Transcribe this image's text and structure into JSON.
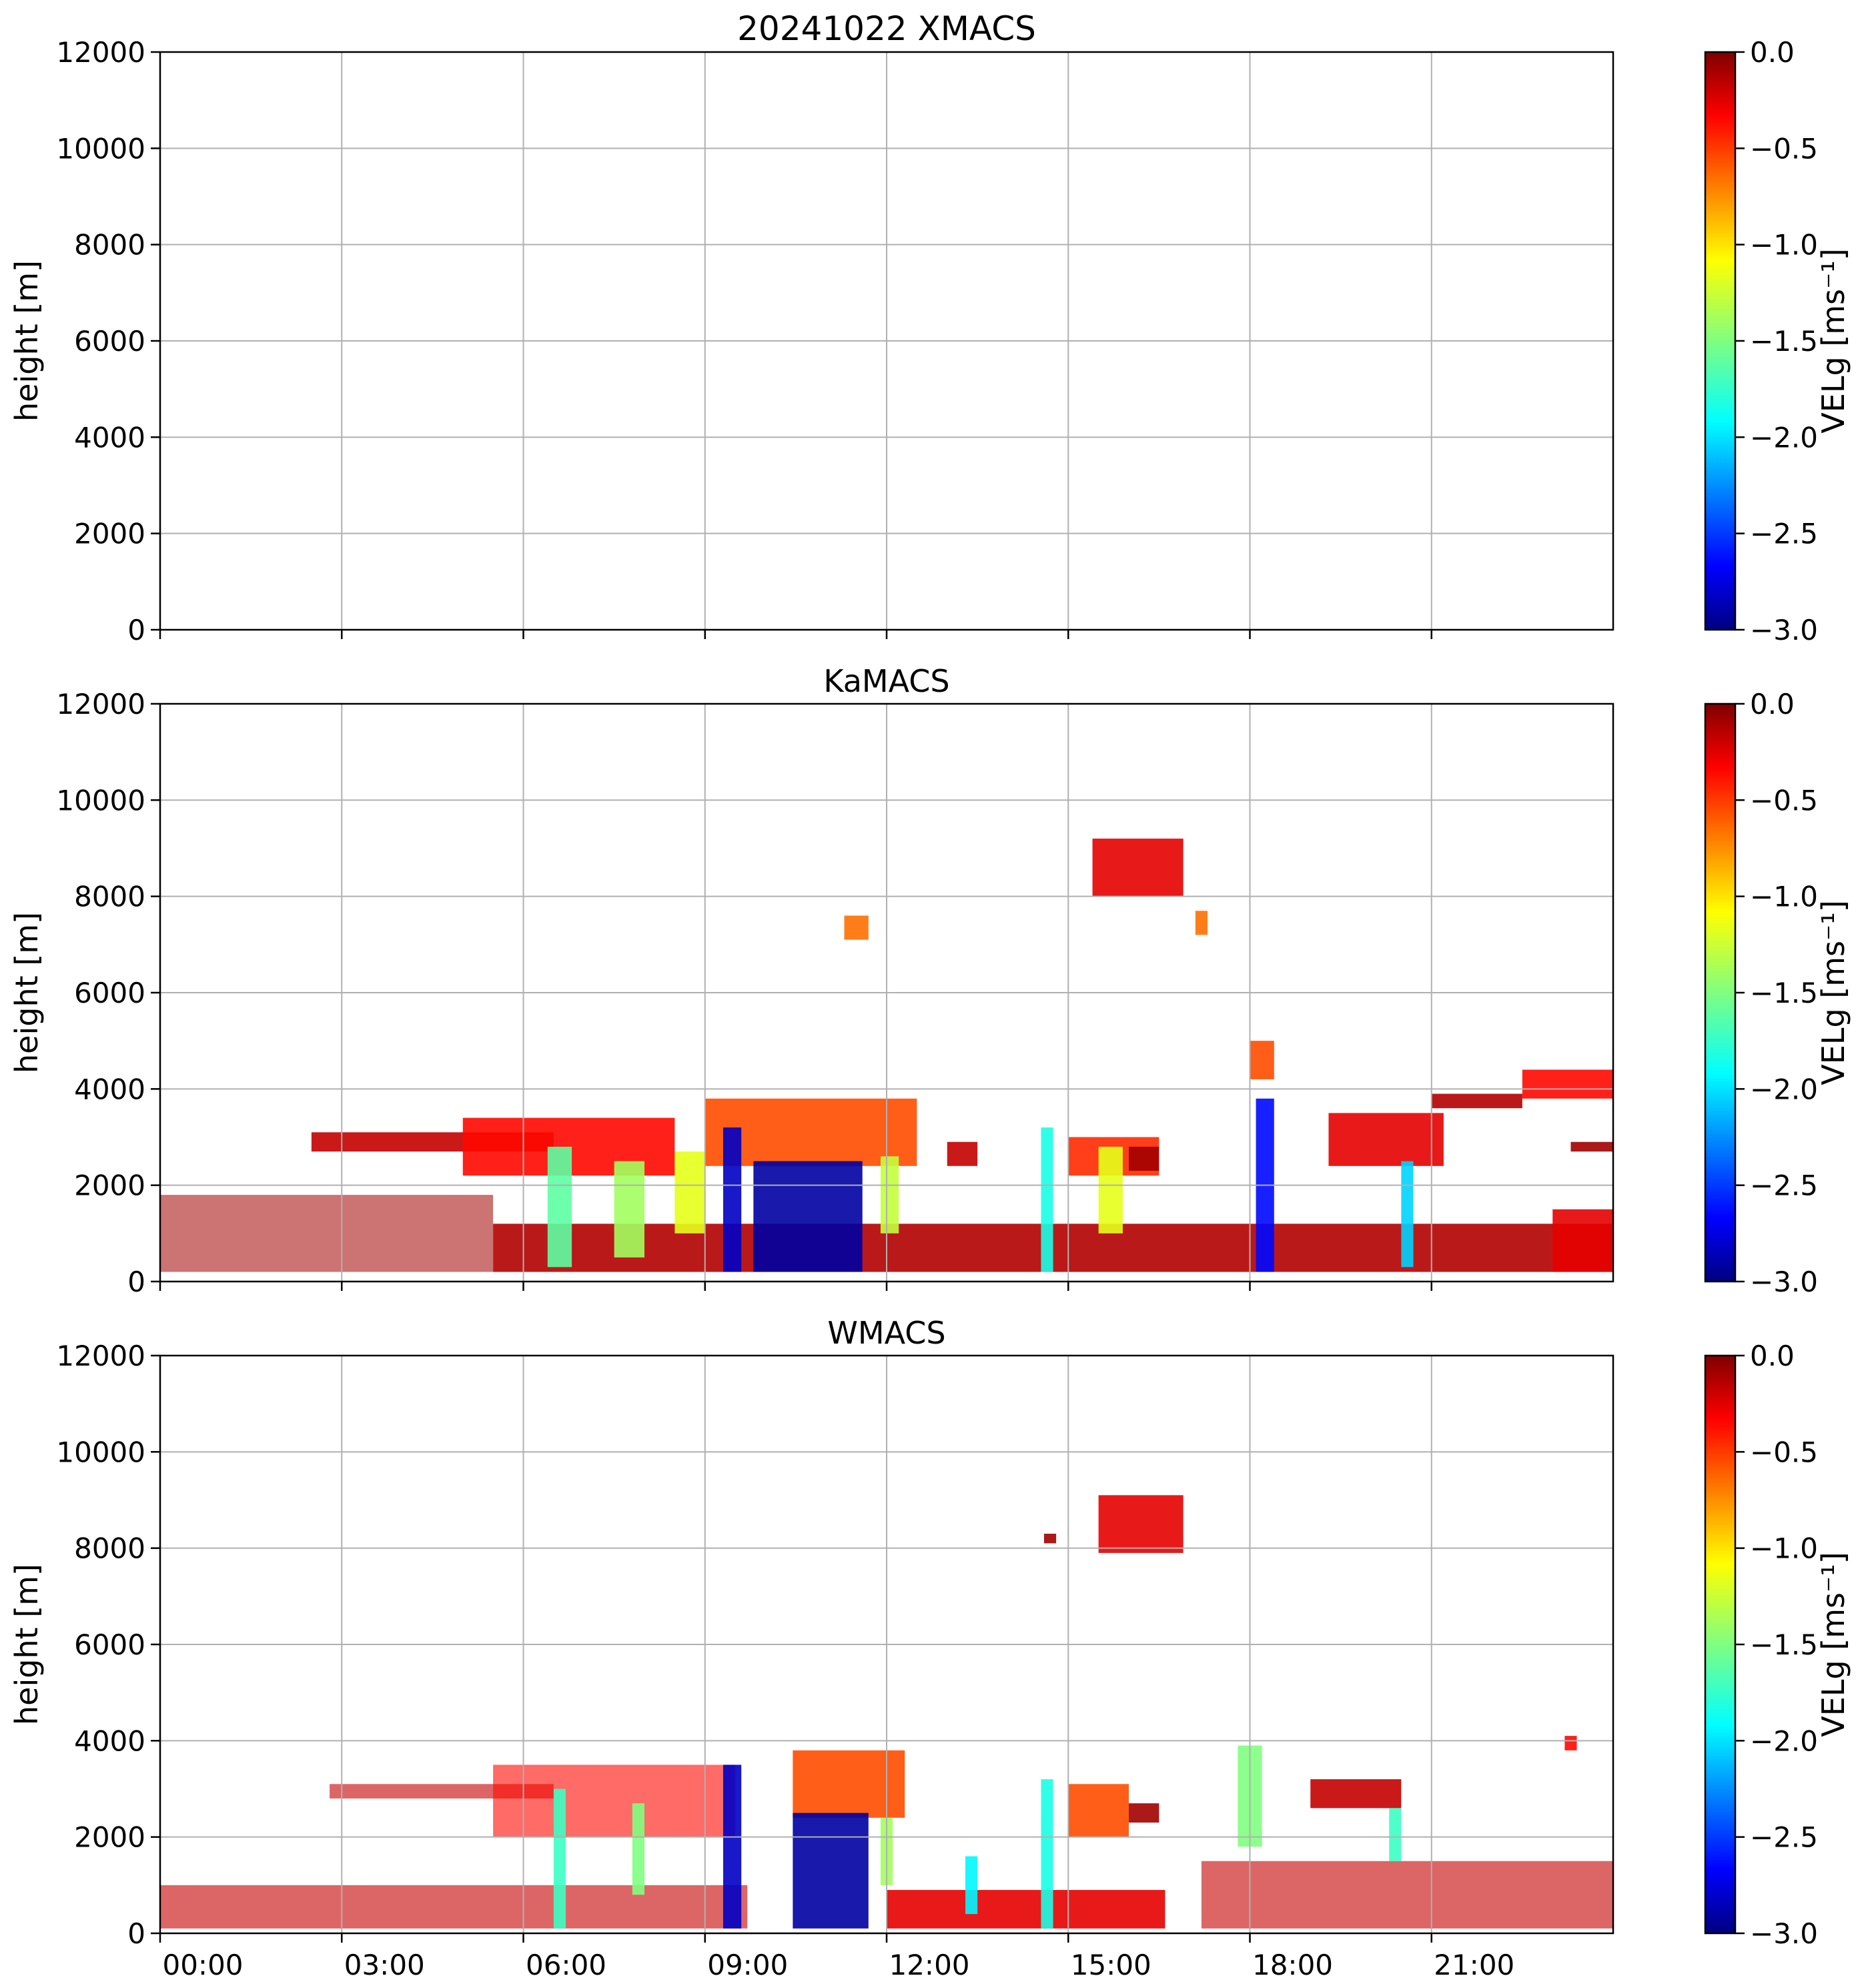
{
  "figure": {
    "colormap": "jet",
    "colors": {
      "axis": "#000000",
      "grid": "#b0b0b0",
      "background": "#ffffff",
      "dark_red": "#800000",
      "dark_blue": "#000080"
    }
  },
  "chart_data": [
    {
      "type": "heatmap",
      "title": "20241022 XMACS",
      "ylabel": "height [m]",
      "xlabel": "",
      "xlim": [
        "00:00",
        "24:00"
      ],
      "ylim": [
        0,
        12000
      ],
      "x_ticks": [
        "00:00",
        "03:00",
        "06:00",
        "09:00",
        "12:00",
        "15:00",
        "18:00",
        "21:00"
      ],
      "x_ticklabels_visible": false,
      "y_ticks": [
        0,
        2000,
        4000,
        6000,
        8000,
        10000,
        12000
      ],
      "grid": true,
      "colorbar": {
        "label": "VELg [ms⁻¹]",
        "range": [
          -3.0,
          0.0
        ],
        "ticks": [
          "0.0",
          "−0.5",
          "−1.0",
          "−1.5",
          "−2.0",
          "−2.5",
          "−3.0"
        ]
      },
      "echoes": []
    },
    {
      "type": "heatmap",
      "title": "KaMACS",
      "ylabel": "height [m]",
      "xlabel": "",
      "xlim": [
        "00:00",
        "24:00"
      ],
      "ylim": [
        0,
        12000
      ],
      "x_ticks": [
        "00:00",
        "03:00",
        "06:00",
        "09:00",
        "12:00",
        "15:00",
        "18:00",
        "21:00"
      ],
      "x_ticklabels_visible": false,
      "y_ticks": [
        0,
        2000,
        4000,
        6000,
        8000,
        10000,
        12000
      ],
      "grid": true,
      "colorbar": {
        "label": "VELg [ms⁻¹]",
        "range": [
          -3.0,
          0.0
        ],
        "ticks": [
          "0.0",
          "−0.5",
          "−1.0",
          "−1.5",
          "−2.0",
          "−2.5",
          "−3.0"
        ]
      },
      "echoes": [
        {
          "t0": 0.0,
          "t1": 5.5,
          "h0": 200,
          "h1": 1800,
          "v": -0.1,
          "note": "speckle"
        },
        {
          "t0": 5.5,
          "t1": 24.0,
          "h0": 200,
          "h1": 1200,
          "v": -0.15
        },
        {
          "t0": 23.0,
          "t1": 24.0,
          "h0": 200,
          "h1": 1500,
          "v": -0.3
        },
        {
          "t0": 2.5,
          "t1": 6.5,
          "h0": 2700,
          "h1": 3100,
          "v": -0.2
        },
        {
          "t0": 5.0,
          "t1": 8.5,
          "h0": 2200,
          "h1": 3400,
          "v": -0.4
        },
        {
          "t0": 6.4,
          "t1": 6.8,
          "h0": 300,
          "h1": 2800,
          "v": -1.6
        },
        {
          "t0": 7.5,
          "t1": 8.0,
          "h0": 500,
          "h1": 2500,
          "v": -1.4
        },
        {
          "t0": 8.5,
          "t1": 9.0,
          "h0": 1000,
          "h1": 2700,
          "v": -1.2
        },
        {
          "t0": 9.0,
          "t1": 12.5,
          "h0": 2400,
          "h1": 3800,
          "v": -0.6
        },
        {
          "t0": 9.3,
          "t1": 9.6,
          "h0": 200,
          "h1": 3200,
          "v": -2.8
        },
        {
          "t0": 9.8,
          "t1": 11.6,
          "h0": 200,
          "h1": 2500,
          "v": -2.9
        },
        {
          "t0": 11.9,
          "t1": 12.2,
          "h0": 1000,
          "h1": 2600,
          "v": -1.3
        },
        {
          "t0": 13.0,
          "t1": 13.5,
          "h0": 2400,
          "h1": 2900,
          "v": -0.2
        },
        {
          "t0": 14.55,
          "t1": 14.75,
          "h0": 200,
          "h1": 3200,
          "v": -1.8
        },
        {
          "t0": 15.0,
          "t1": 16.5,
          "h0": 2200,
          "h1": 3000,
          "v": -0.5
        },
        {
          "t0": 15.5,
          "t1": 15.9,
          "h0": 1000,
          "h1": 2800,
          "v": -1.2
        },
        {
          "t0": 16.0,
          "t1": 16.5,
          "h0": 2300,
          "h1": 2800,
          "v": -0.1
        },
        {
          "t0": 15.4,
          "t1": 16.9,
          "h0": 8000,
          "h1": 9200,
          "v": -0.3
        },
        {
          "t0": 17.1,
          "t1": 17.3,
          "h0": 7200,
          "h1": 7700,
          "v": -0.7
        },
        {
          "t0": 11.3,
          "t1": 11.7,
          "h0": 7100,
          "h1": 7600,
          "v": -0.7
        },
        {
          "t0": 18.1,
          "t1": 18.4,
          "h0": 200,
          "h1": 3800,
          "v": -2.6
        },
        {
          "t0": 18.0,
          "t1": 18.4,
          "h0": 4200,
          "h1": 5000,
          "v": -0.6
        },
        {
          "t0": 19.3,
          "t1": 21.2,
          "h0": 2400,
          "h1": 3500,
          "v": -0.3
        },
        {
          "t0": 20.5,
          "t1": 20.7,
          "h0": 300,
          "h1": 2500,
          "v": -2.0
        },
        {
          "t0": 21.0,
          "t1": 22.5,
          "h0": 3600,
          "h1": 3900,
          "v": -0.15
        },
        {
          "t0": 22.5,
          "t1": 24.0,
          "h0": 3800,
          "h1": 4400,
          "v": -0.4
        },
        {
          "t0": 23.3,
          "t1": 24.0,
          "h0": 2700,
          "h1": 2900,
          "v": -0.1
        }
      ]
    },
    {
      "type": "heatmap",
      "title": "WMACS",
      "ylabel": "height [m]",
      "xlabel": "",
      "xlim": [
        "00:00",
        "24:00"
      ],
      "ylim": [
        0,
        12000
      ],
      "x_ticks": [
        "00:00",
        "03:00",
        "06:00",
        "09:00",
        "12:00",
        "15:00",
        "18:00",
        "21:00"
      ],
      "x_ticklabels_visible": true,
      "y_ticks": [
        0,
        2000,
        4000,
        6000,
        8000,
        10000,
        12000
      ],
      "grid": true,
      "colorbar": {
        "label": "VELg [ms⁻¹]",
        "range": [
          -3.0,
          0.0
        ],
        "ticks": [
          "0.0",
          "−0.5",
          "−1.0",
          "−1.5",
          "−2.0",
          "−2.5",
          "−3.0"
        ]
      },
      "echoes": [
        {
          "t0": 0.0,
          "t1": 9.7,
          "h0": 100,
          "h1": 1000,
          "v": -0.2,
          "note": "striped"
        },
        {
          "t0": 12.0,
          "t1": 16.6,
          "h0": 100,
          "h1": 900,
          "v": -0.3
        },
        {
          "t0": 17.2,
          "t1": 24.0,
          "h0": 100,
          "h1": 1500,
          "v": -0.2,
          "note": "striped"
        },
        {
          "t0": 2.8,
          "t1": 6.5,
          "h0": 2800,
          "h1": 3100,
          "v": -0.2,
          "note": "striped"
        },
        {
          "t0": 5.5,
          "t1": 9.5,
          "h0": 2000,
          "h1": 3500,
          "v": -0.4,
          "note": "striped"
        },
        {
          "t0": 6.5,
          "t1": 6.7,
          "h0": 100,
          "h1": 3000,
          "v": -1.7
        },
        {
          "t0": 7.8,
          "t1": 8.0,
          "h0": 800,
          "h1": 2700,
          "v": -1.5
        },
        {
          "t0": 9.3,
          "t1": 9.6,
          "h0": 100,
          "h1": 3500,
          "v": -2.8
        },
        {
          "t0": 10.45,
          "t1": 12.3,
          "h0": 2400,
          "h1": 3800,
          "v": -0.6
        },
        {
          "t0": 10.45,
          "t1": 11.7,
          "h0": 100,
          "h1": 2500,
          "v": -2.9
        },
        {
          "t0": 11.9,
          "t1": 12.1,
          "h0": 1000,
          "h1": 2400,
          "v": -1.4
        },
        {
          "t0": 13.3,
          "t1": 13.5,
          "h0": 400,
          "h1": 1600,
          "v": -1.9
        },
        {
          "t0": 14.55,
          "t1": 14.75,
          "h0": 100,
          "h1": 3200,
          "v": -1.8
        },
        {
          "t0": 15.0,
          "t1": 16.0,
          "h0": 2000,
          "h1": 3100,
          "v": -0.6
        },
        {
          "t0": 16.0,
          "t1": 16.5,
          "h0": 2300,
          "h1": 2700,
          "v": -0.1
        },
        {
          "t0": 15.5,
          "t1": 16.9,
          "h0": 7900,
          "h1": 9100,
          "v": -0.3
        },
        {
          "t0": 14.6,
          "t1": 14.8,
          "h0": 8100,
          "h1": 8300,
          "v": -0.1
        },
        {
          "t0": 17.8,
          "t1": 18.2,
          "h0": 1800,
          "h1": 3900,
          "v": -1.5
        },
        {
          "t0": 19.0,
          "t1": 20.5,
          "h0": 2600,
          "h1": 3200,
          "v": -0.2
        },
        {
          "t0": 20.3,
          "t1": 20.5,
          "h0": 1500,
          "h1": 2600,
          "v": -1.7
        },
        {
          "t0": 23.2,
          "t1": 23.4,
          "h0": 3800,
          "h1": 4100,
          "v": -0.4
        }
      ]
    }
  ]
}
